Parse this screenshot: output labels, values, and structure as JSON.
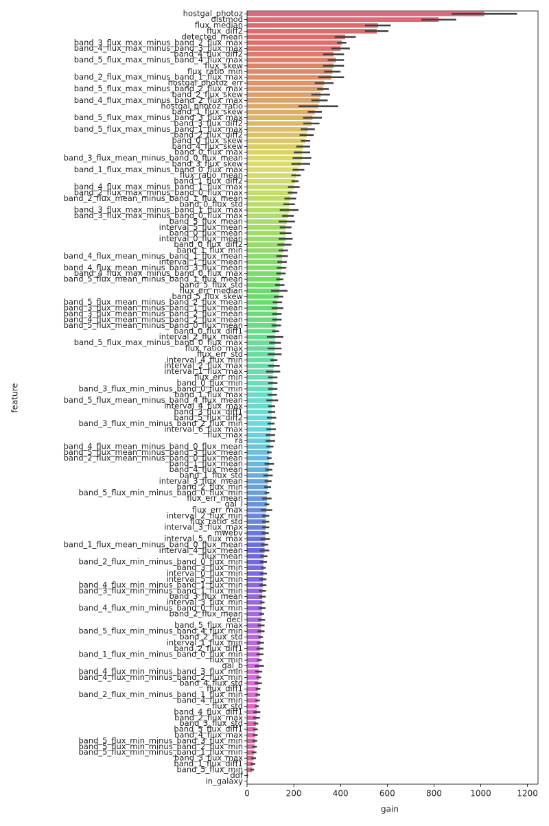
{
  "chart_data": {
    "type": "barh",
    "x_label": "gain",
    "y_label": "feature",
    "palette": "husl",
    "xlim": [
      0,
      1245
    ],
    "xticks": [
      0,
      200,
      400,
      600,
      800,
      1000,
      1200
    ],
    "categories": [
      "hostgal_photoz",
      "distmod",
      "flux_median",
      "flux_diff2",
      "detected_mean",
      "band_3_flux_max_minus_band_2_flux_max",
      "band_4_flux_max_minus_band_3_flux_max",
      "band_4_flux_diff2",
      "band_5_flux_max_minus_band_4_flux_max",
      "flux_skew",
      "flux_ratio_min",
      "band_2_flux_max_minus_band_1_flux_max",
      "hostgal_photoz_err",
      "band_5_flux_max_minus_band_2_flux_max",
      "band_2_flux_skew",
      "band_4_flux_max_minus_band_2_flux_max",
      "hostgal_photoz_ratio",
      "band_1_flux_skew",
      "band_5_flux_max_minus_band_3_flux_max",
      "band_3_flux_diff2",
      "band_5_flux_max_minus_band_1_flux_max",
      "band_2_flux_diff2",
      "band_0_flux_skew",
      "band_4_flux_skew",
      "band_0_flux_max",
      "band_3_flux_mean_minus_band_0_flux_mean",
      "band_3_flux_skew",
      "band_1_flux_max_minus_band_0_flux_max",
      "flux_ratio_mean",
      "band_1_flux_diff2",
      "band_4_flux_max_minus_band_1_flux_max",
      "band_2_flux_max_minus_band_0_flux_max",
      "band_2_flux_mean_minus_band_1_flux_mean",
      "band_0_flux_std",
      "band_3_flux_max_minus_band_1_flux_max",
      "band_3_flux_max_minus_band_0_flux_max",
      "band_5_flux_mean",
      "interval_5_flux_mean",
      "band_0_flux_mean",
      "interval_0_flux_mean",
      "band_0_flux_diff2",
      "band_1_flux_min",
      "band_4_flux_mean_minus_band_1_flux_mean",
      "interval_1_flux_mean",
      "band_4_flux_mean_minus_band_3_flux_mean",
      "band_4_flux_max_minus_band_0_flux_max",
      "band_5_flux_mean_minus_band_1_flux_mean",
      "band_5_flux_std",
      "flux_err_median",
      "band_5_flux_skew",
      "band_5_flux_mean_minus_band_2_flux_mean",
      "band_3_flux_mean_minus_band_1_flux_mean",
      "band_3_flux_mean_minus_band_2_flux_mean",
      "band_4_flux_mean_minus_band_2_flux_mean",
      "band_5_flux_mean_minus_band_0_flux_mean",
      "band_0_flux_diff1",
      "interval_2_flux_mean",
      "band_5_flux_max_minus_band_0_flux_max",
      "flux_ratio_max",
      "flux_err_std",
      "interval_4_flux_min",
      "interval_2_flux_max",
      "interval_1_flux_max",
      "flux_err_min",
      "band_0_flux_min",
      "band_3_flux_min_minus_band_0_flux_min",
      "band_1_flux_max",
      "band_5_flux_mean_minus_band_4_flux_mean",
      "interval_4_flux_max",
      "band_3_flux_diff1",
      "band_5_flux_diff2",
      "band_3_flux_min_minus_band_2_flux_min",
      "interval_6_flux_max",
      "flux_max",
      "ra",
      "band_4_flux_mean_minus_band_0_flux_mean",
      "band_5_flux_mean_minus_band_3_flux_mean",
      "band_2_flux_mean_minus_band_0_flux_mean",
      "band_1_flux_mean",
      "band_4_flux_mean",
      "band_1_flux_std",
      "interval_3_flux_mean",
      "band_2_flux_min",
      "band_5_flux_min_minus_band_0_flux_min",
      "flux_err_mean",
      "gal_l",
      "flux_err_max",
      "interval_2_flux_min",
      "flux_ratio_std",
      "interval_3_flux_max",
      "mwebv",
      "interval_5_flux_max",
      "band_1_flux_mean_minus_band_0_flux_mean",
      "interval_4_flux_mean",
      "flux_mean",
      "band_2_flux_min_minus_band_0_flux_min",
      "band_3_flux_min",
      "interval_0_flux_min",
      "interval_5_flux_min",
      "band_4_flux_min_minus_band_1_flux_min",
      "band_3_flux_min_minus_band_1_flux_min",
      "band_3_flux_mean",
      "interval_3_flux_min",
      "band_4_flux_min_minus_band_0_flux_min",
      "band_2_flux_mean",
      "decl",
      "band_5_flux_max",
      "band_5_flux_min_minus_band_4_flux_min",
      "band_2_flux_std",
      "interval_1_flux_min",
      "band_2_flux_diff1",
      "band_1_flux_min_minus_band_0_flux_min",
      "flux_min",
      "gal_b",
      "band_4_flux_min_minus_band_3_flux_min",
      "band_4_flux_min_minus_band_2_flux_min",
      "band_4_flux_std",
      "flux_diff1",
      "band_2_flux_min_minus_band_1_flux_min",
      "band_4_flux_min",
      "flux_std",
      "band_4_flux_diff1",
      "band_2_flux_max",
      "band_3_flux_std",
      "band_5_flux_diff1",
      "band_4_flux_max",
      "band_5_flux_min_minus_band_3_flux_min",
      "band_5_flux_min_minus_band_2_flux_min",
      "band_5_flux_min_minus_band_1_flux_min",
      "band_3_flux_max",
      "band_1_flux_diff1",
      "band_5_flux_min",
      "ddf",
      "in_galaxy"
    ],
    "values": [
      1015,
      820,
      560,
      555,
      420,
      405,
      400,
      370,
      380,
      370,
      365,
      360,
      330,
      325,
      315,
      310,
      305,
      290,
      280,
      275,
      260,
      255,
      250,
      240,
      235,
      235,
      230,
      220,
      210,
      205,
      200,
      195,
      185,
      180,
      180,
      175,
      170,
      165,
      165,
      165,
      160,
      155,
      150,
      150,
      148,
      145,
      140,
      140,
      138,
      135,
      130,
      130,
      128,
      128,
      125,
      122,
      120,
      120,
      118,
      118,
      115,
      115,
      112,
      110,
      110,
      110,
      108,
      108,
      105,
      105,
      105,
      103,
      103,
      100,
      100,
      98,
      95,
      95,
      95,
      93,
      90,
      90,
      88,
      85,
      85,
      85,
      83,
      80,
      80,
      80,
      78,
      78,
      75,
      75,
      72,
      70,
      70,
      70,
      68,
      68,
      66,
      65,
      65,
      64,
      63,
      62,
      60,
      60,
      58,
      57,
      55,
      55,
      53,
      52,
      50,
      50,
      48,
      47,
      46,
      45,
      42,
      42,
      40,
      38,
      36,
      35,
      33,
      32,
      30,
      28,
      25,
      22,
      3,
      0
    ],
    "errors": [
      140,
      75,
      55,
      50,
      45,
      20,
      40,
      45,
      35,
      45,
      35,
      55,
      40,
      25,
      40,
      35,
      85,
      30,
      40,
      35,
      30,
      30,
      20,
      30,
      35,
      40,
      40,
      25,
      20,
      15,
      25,
      20,
      25,
      25,
      40,
      25,
      35,
      25,
      25,
      30,
      30,
      20,
      25,
      20,
      20,
      20,
      15,
      20,
      35,
      20,
      20,
      25,
      20,
      20,
      20,
      15,
      35,
      25,
      30,
      30,
      15,
      25,
      30,
      20,
      20,
      20,
      20,
      25,
      15,
      15,
      20,
      15,
      20,
      20,
      20,
      15,
      10,
      10,
      20,
      15,
      20,
      15,
      15,
      10,
      20,
      10,
      25,
      15,
      15,
      15,
      15,
      20,
      15,
      20,
      15,
      15,
      10,
      15,
      15,
      15,
      15,
      15,
      10,
      15,
      10,
      15,
      15,
      15,
      10,
      15,
      15,
      15,
      10,
      20,
      15,
      10,
      15,
      10,
      10,
      10,
      8,
      15,
      15,
      10,
      10,
      10,
      10,
      10,
      10,
      10,
      10,
      8,
      2,
      0
    ]
  }
}
